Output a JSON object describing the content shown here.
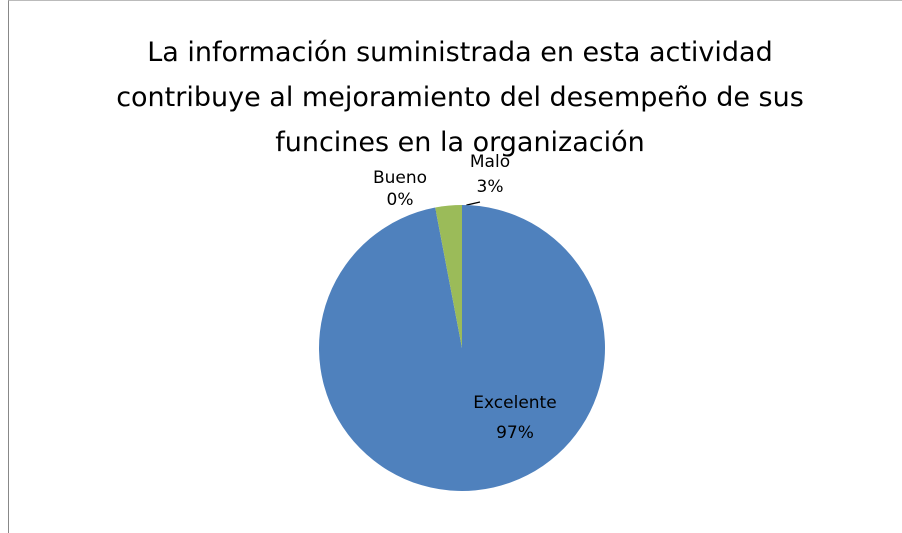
{
  "chart_data": {
    "type": "pie",
    "title": "La información suministrada en esta actividad contribuye al mejoramiento del desempeño de sus funcines en la organización",
    "categories": [
      "Excelente",
      "Bueno",
      "Malo"
    ],
    "values": [
      97,
      0,
      3
    ],
    "value_labels": [
      "97%",
      "0%",
      "3%"
    ],
    "colors": [
      "#4f81bd",
      "#c0504d",
      "#9bbb59"
    ]
  }
}
